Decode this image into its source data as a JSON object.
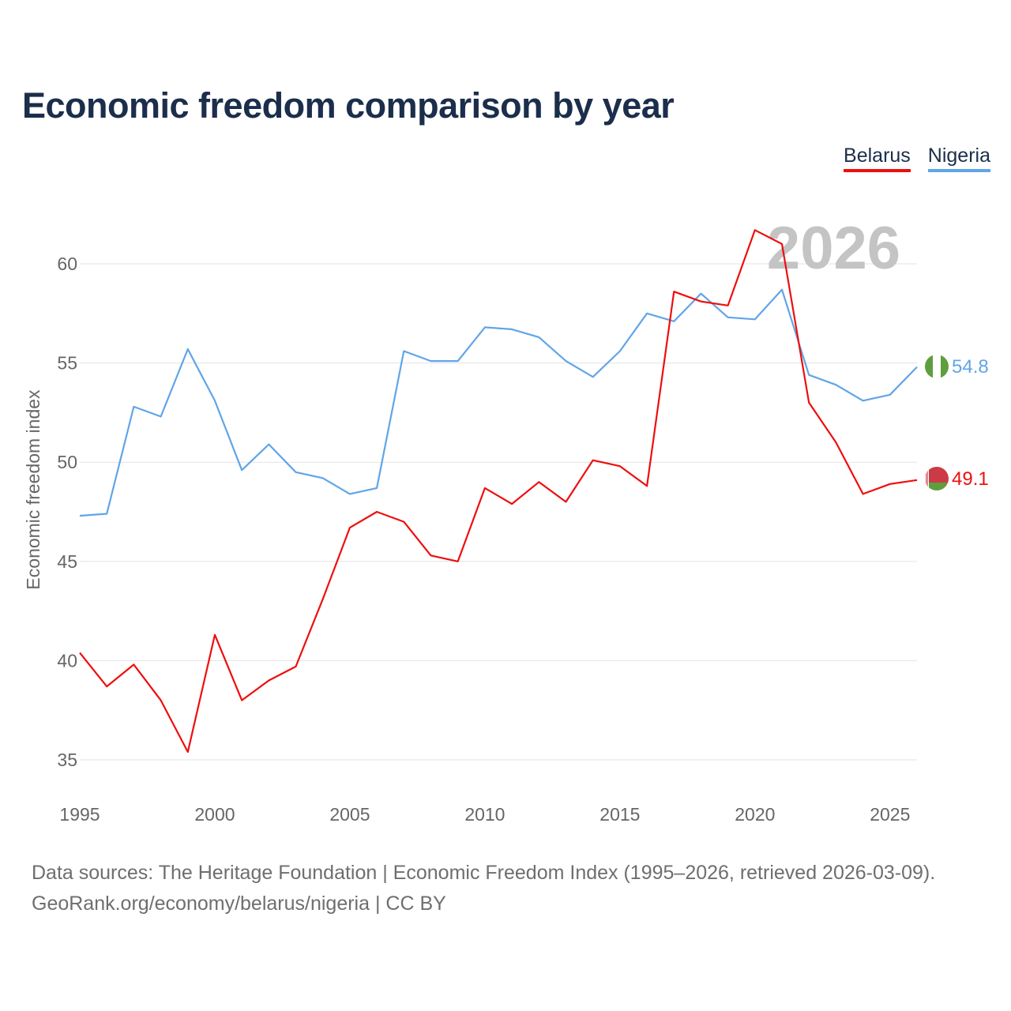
{
  "title": "Economic freedom comparison by year",
  "legend": [
    {
      "name": "Belarus",
      "color": "#ee0e0e"
    },
    {
      "name": "Nigeria",
      "color": "#60a5e8"
    }
  ],
  "year_watermark": "2026",
  "end_labels": {
    "belarus": "49.1",
    "nigeria": "54.8"
  },
  "flags": {
    "belarus": "belarus-flag-icon",
    "nigeria": "nigeria-flag-icon"
  },
  "footer": {
    "line1": "Data sources: The Heritage Foundation | Economic Freedom Index (1995–2026, retrieved 2026-03-09).",
    "line2": "GeoRank.org/economy/belarus/nigeria | CC BY"
  },
  "chart_data": {
    "type": "line",
    "title": "Economic freedom comparison by year",
    "xlabel": "",
    "ylabel": "Economic freedom index",
    "xlim": [
      1995,
      2026
    ],
    "ylim": [
      35,
      62
    ],
    "x_ticks": [
      1995,
      2000,
      2005,
      2010,
      2015,
      2020,
      2025
    ],
    "y_ticks": [
      35,
      40,
      45,
      50,
      55,
      60
    ],
    "grid": true,
    "x": [
      1995,
      1996,
      1997,
      1998,
      1999,
      2000,
      2001,
      2002,
      2003,
      2004,
      2005,
      2006,
      2007,
      2008,
      2009,
      2010,
      2011,
      2012,
      2013,
      2014,
      2015,
      2016,
      2017,
      2018,
      2019,
      2020,
      2021,
      2022,
      2023,
      2024,
      2025,
      2026
    ],
    "series": [
      {
        "name": "Belarus",
        "color": "#ee0e0e",
        "values": [
          40.4,
          38.7,
          39.8,
          38.0,
          35.4,
          41.3,
          38.0,
          39.0,
          39.7,
          43.1,
          46.7,
          47.5,
          47.0,
          45.3,
          45.0,
          48.7,
          47.9,
          49.0,
          48.0,
          50.1,
          49.8,
          48.8,
          58.6,
          58.1,
          57.9,
          61.7,
          61.0,
          53.0,
          51.0,
          48.4,
          48.9,
          49.1
        ]
      },
      {
        "name": "Nigeria",
        "color": "#60a5e8",
        "values": [
          47.3,
          47.4,
          52.8,
          52.3,
          55.7,
          53.1,
          49.6,
          50.9,
          49.5,
          49.2,
          48.4,
          48.7,
          55.6,
          55.1,
          55.1,
          56.8,
          56.7,
          56.3,
          55.1,
          54.3,
          55.6,
          57.5,
          57.1,
          58.5,
          57.3,
          57.2,
          58.7,
          54.4,
          53.9,
          53.1,
          53.4,
          54.8
        ]
      }
    ]
  }
}
